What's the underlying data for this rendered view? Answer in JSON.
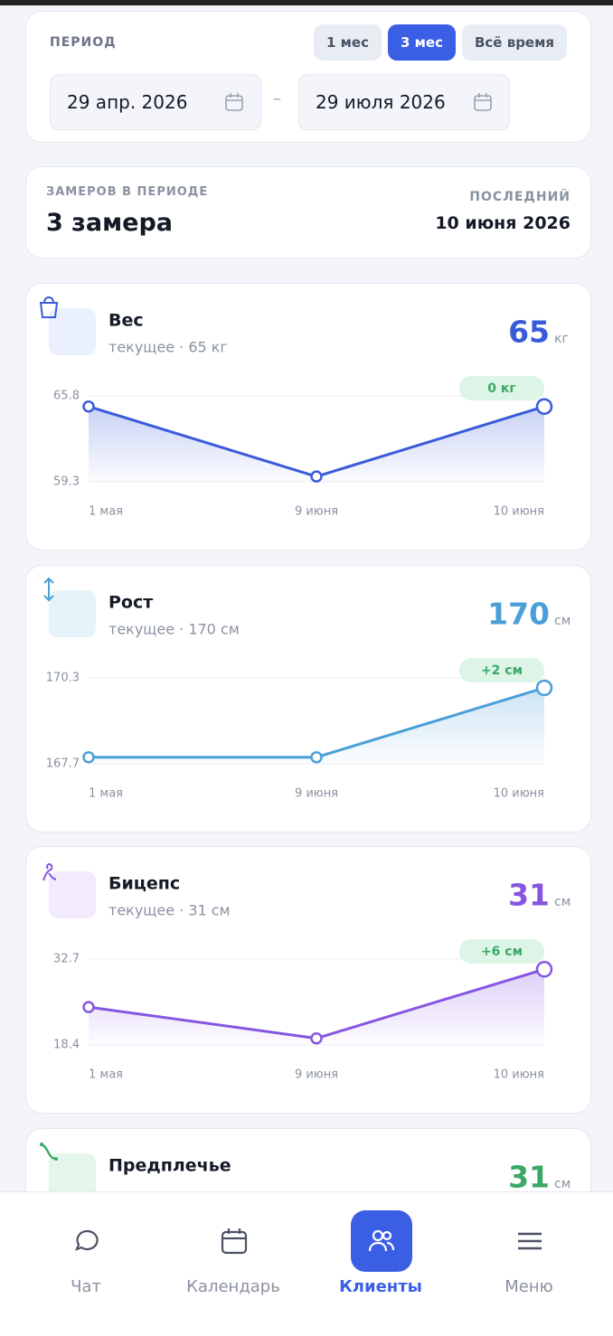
{
  "period": {
    "label": "ПЕРИОД",
    "options": [
      "1 мес",
      "3 мес",
      "Всё время"
    ],
    "active": 1,
    "from": "29 апр. 2026",
    "dash": "–",
    "to": "29 июля 2026"
  },
  "summary": {
    "label": "ЗАМЕРОВ В ПЕРИОДЕ",
    "count": "3 замера",
    "last_label": "ПОСЛЕДНИЙ",
    "last": "10 июня 2026"
  },
  "metrics": [
    {
      "title": "Вес",
      "subtitle": "текущее · 65 кг",
      "current": 65,
      "unit": "кг",
      "color": "#3a5bd9",
      "chart": {
        "type": "line",
        "categories": [
          "1 мая",
          "9 июня",
          "10 июня"
        ],
        "values": [
          65,
          59.7,
          65
        ],
        "ylim": [
          59.3,
          65.8
        ],
        "yticks": [
          59.3,
          65.8
        ],
        "badge": "0 кг"
      }
    },
    {
      "title": "Рост",
      "subtitle": "текущее · 170 см",
      "current": 170,
      "unit": "см",
      "color": "#4a9fd8",
      "chart": {
        "type": "line",
        "categories": [
          "1 мая",
          "9 июня",
          "10 июня"
        ],
        "values": [
          167.9,
          167.9,
          170
        ],
        "ylim": [
          167.7,
          170.3
        ],
        "yticks": [
          167.7,
          170.3
        ],
        "badge": "+2 см"
      }
    },
    {
      "title": "Бицепс",
      "subtitle": "текущее · 31 см",
      "current": 31,
      "unit": "см",
      "color": "#8656e0",
      "chart": {
        "type": "line",
        "categories": [
          "1 мая",
          "9 июня",
          "10 июня"
        ],
        "values": [
          24.7,
          19.5,
          31
        ],
        "ylim": [
          18.4,
          32.7
        ],
        "yticks": [
          18.4,
          32.7
        ],
        "badge": "+6 см"
      }
    },
    {
      "title": "Предплечье",
      "current": 31,
      "unit": "см",
      "color": "#3aa866"
    }
  ],
  "nav": {
    "items": [
      "Чат",
      "Календарь",
      "Клиенты",
      "Меню"
    ],
    "active": 2
  }
}
